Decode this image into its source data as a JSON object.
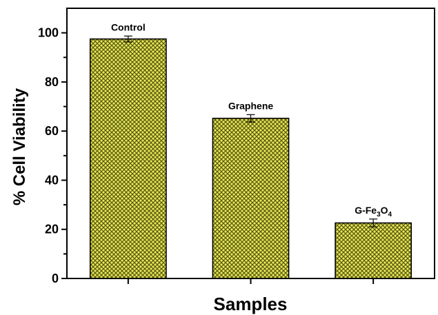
{
  "chart_data": {
    "type": "bar",
    "title": "",
    "xlabel": "Samples",
    "ylabel": "% Cell Viability",
    "categories": [
      "Control",
      "Graphene",
      "G-Fe3O4"
    ],
    "category_labels": [
      {
        "text": "Control",
        "parts": [
          {
            "t": "Control",
            "sub": false
          }
        ]
      },
      {
        "text": "Graphene",
        "parts": [
          {
            "t": "Graphene",
            "sub": false
          }
        ]
      },
      {
        "text": "G-Fe3O4",
        "parts": [
          {
            "t": "G-Fe",
            "sub": false
          },
          {
            "t": "3",
            "sub": true
          },
          {
            "t": "O",
            "sub": false
          },
          {
            "t": "4",
            "sub": true
          }
        ]
      }
    ],
    "values": [
      97.5,
      65.2,
      22.6
    ],
    "errors": [
      1.2,
      1.5,
      1.6
    ],
    "ylim": [
      0,
      110
    ],
    "yticks": [
      0,
      20,
      40,
      60,
      80,
      100
    ],
    "grid": false,
    "legend": "none",
    "bar_color": "#e8e85a",
    "bar_pattern_color": "#5a5a10"
  }
}
